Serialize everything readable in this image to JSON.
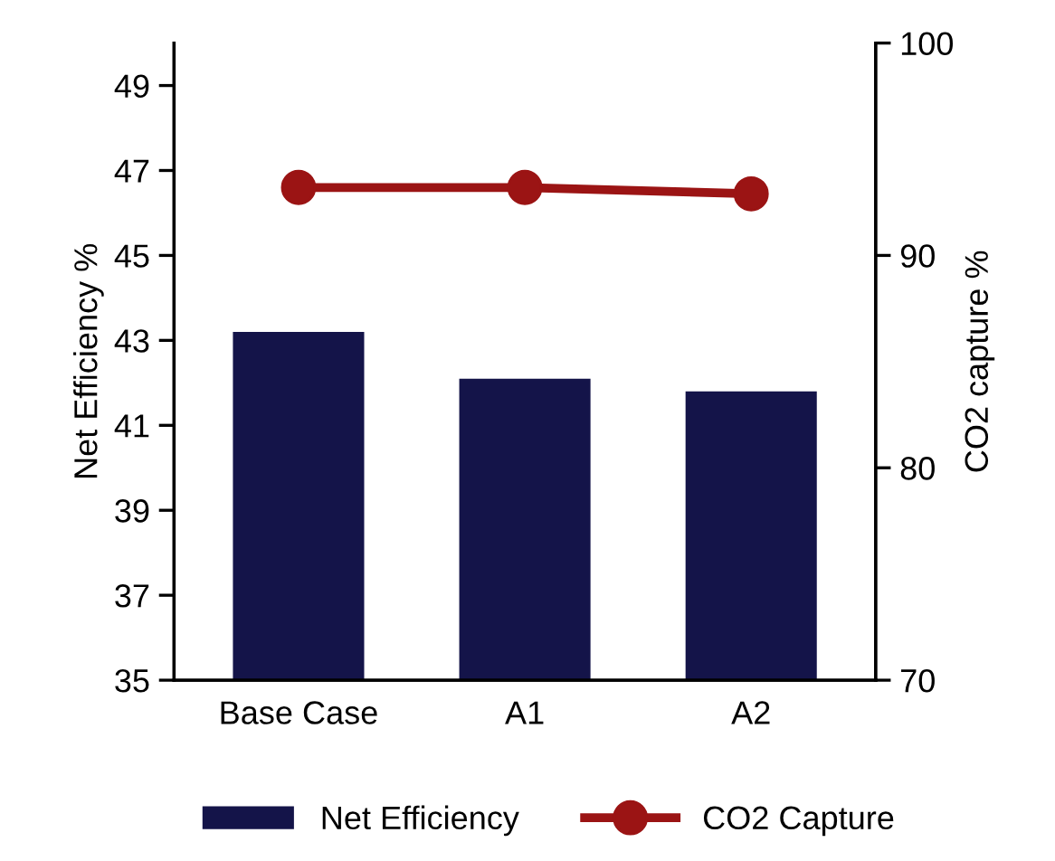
{
  "chart_data": {
    "type": "bar",
    "categories": [
      "Base Case",
      "A1",
      "A2"
    ],
    "ylabel": "Net Efficiency %",
    "y2label": "CO2 capture %",
    "series": [
      {
        "name": "Net Efficiency",
        "color": "#141449",
        "values": [
          43.2,
          42.1,
          41.8
        ]
      },
      {
        "name": "CO2 Capture",
        "type": "line",
        "axis": "y2",
        "color": "#9b1414",
        "marker": "circle",
        "values": [
          93.2,
          93.2,
          92.9
        ]
      }
    ],
    "ylim": [
      35,
      50
    ],
    "yticks": [
      35,
      37,
      39,
      41,
      43,
      45,
      47,
      49
    ],
    "y2lim": [
      70,
      100
    ],
    "y2ticks": [
      70,
      80,
      90,
      100
    ],
    "grid": false,
    "legend": "bottom"
  }
}
